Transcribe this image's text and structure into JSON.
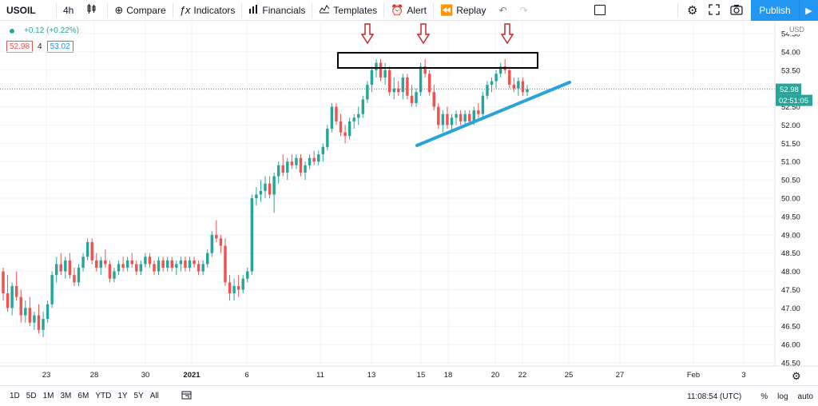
{
  "toolbar": {
    "symbol": "USOIL",
    "interval": "4h",
    "compare": "Compare",
    "indicators": "Indicators",
    "financials": "Financials",
    "templates": "Templates",
    "alert": "Alert",
    "replay": "Replay",
    "publish": "Publish"
  },
  "legend": {
    "change": "+0.12 (+0.22%)",
    "bid": "52.98",
    "spread": "4",
    "ask": "53.02"
  },
  "price_axis": {
    "currency": "USD",
    "current_price": "52.98",
    "countdown": "02:51:05"
  },
  "bottom_bar": {
    "ranges": [
      "1D",
      "5D",
      "1M",
      "3M",
      "6M",
      "YTD",
      "1Y",
      "5Y",
      "All"
    ],
    "time": "11:08:54 (UTC)",
    "percent": "%",
    "log": "log",
    "auto": "auto"
  },
  "colors": {
    "up": "#26a69a",
    "down": "#ef5350",
    "trendline": "#2aa3d9",
    "arrow": "#c62828",
    "accent": "#2196f3"
  },
  "chart_data": {
    "type": "candlestick",
    "ylim": [
      45.5,
      54.5
    ],
    "y_ticks": [
      "54.50",
      "54.00",
      "53.50",
      "53.00",
      "52.50",
      "52.00",
      "51.50",
      "51.00",
      "50.50",
      "50.00",
      "49.50",
      "49.00",
      "48.50",
      "48.00",
      "47.50",
      "47.00",
      "46.50",
      "46.00",
      "45.50"
    ],
    "x_ticks": [
      "23",
      "28",
      "30",
      "2021",
      "6",
      "11",
      "13",
      "15",
      "18",
      "20",
      "22",
      "25",
      "27",
      "Feb",
      "3"
    ],
    "last_price": 52.98,
    "candles": [
      [
        48.0,
        48.1,
        47.2,
        47.4
      ],
      [
        47.4,
        47.9,
        46.9,
        47.0
      ],
      [
        47.0,
        47.7,
        46.8,
        47.6
      ],
      [
        47.6,
        48.0,
        47.2,
        47.3
      ],
      [
        47.3,
        47.5,
        46.6,
        46.8
      ],
      [
        46.8,
        47.2,
        46.6,
        47.0
      ],
      [
        47.0,
        47.3,
        46.5,
        46.6
      ],
      [
        46.6,
        46.9,
        46.4,
        46.8
      ],
      [
        46.8,
        47.1,
        46.3,
        46.4
      ],
      [
        46.4,
        46.9,
        46.2,
        46.7
      ],
      [
        46.7,
        47.2,
        46.6,
        47.1
      ],
      [
        47.1,
        48.0,
        47.0,
        47.9
      ],
      [
        47.9,
        48.4,
        47.7,
        48.2
      ],
      [
        48.2,
        48.5,
        47.9,
        48.0
      ],
      [
        48.0,
        48.4,
        47.8,
        48.3
      ],
      [
        48.3,
        48.5,
        47.8,
        47.9
      ],
      [
        47.9,
        48.1,
        47.6,
        47.7
      ],
      [
        47.7,
        48.2,
        47.6,
        48.1
      ],
      [
        48.1,
        48.5,
        48.0,
        48.4
      ],
      [
        48.4,
        48.9,
        48.3,
        48.8
      ],
      [
        48.8,
        48.9,
        48.2,
        48.3
      ],
      [
        48.3,
        48.5,
        48.0,
        48.1
      ],
      [
        48.1,
        48.4,
        47.9,
        48.3
      ],
      [
        48.3,
        48.6,
        48.1,
        48.2
      ],
      [
        48.2,
        48.3,
        47.7,
        47.8
      ],
      [
        47.8,
        48.1,
        47.7,
        48.0
      ],
      [
        48.0,
        48.3,
        47.9,
        48.2
      ],
      [
        48.2,
        48.4,
        48.0,
        48.1
      ],
      [
        48.1,
        48.4,
        48.0,
        48.3
      ],
      [
        48.3,
        48.5,
        48.1,
        48.2
      ],
      [
        48.2,
        48.3,
        47.9,
        48.0
      ],
      [
        48.0,
        48.3,
        47.9,
        48.2
      ],
      [
        48.2,
        48.5,
        48.1,
        48.4
      ],
      [
        48.4,
        48.5,
        48.1,
        48.2
      ],
      [
        48.2,
        48.3,
        47.9,
        48.0
      ],
      [
        48.0,
        48.4,
        47.9,
        48.3
      ],
      [
        48.3,
        48.4,
        48.0,
        48.1
      ],
      [
        48.1,
        48.4,
        48.0,
        48.3
      ],
      [
        48.3,
        48.4,
        48.0,
        48.1
      ],
      [
        48.1,
        48.3,
        47.9,
        48.2
      ],
      [
        48.2,
        48.4,
        48.0,
        48.3
      ],
      [
        48.3,
        48.4,
        48.0,
        48.1
      ],
      [
        48.1,
        48.4,
        48.0,
        48.3
      ],
      [
        48.3,
        48.4,
        48.1,
        48.2
      ],
      [
        48.2,
        48.3,
        47.9,
        48.0
      ],
      [
        48.0,
        48.3,
        47.9,
        48.2
      ],
      [
        48.2,
        48.6,
        48.1,
        48.5
      ],
      [
        48.5,
        49.1,
        48.4,
        49.0
      ],
      [
        49.0,
        49.4,
        48.8,
        48.9
      ],
      [
        48.9,
        49.0,
        48.5,
        48.7
      ],
      [
        48.7,
        48.9,
        47.6,
        47.7
      ],
      [
        47.7,
        47.9,
        47.2,
        47.4
      ],
      [
        47.4,
        47.8,
        47.2,
        47.6
      ],
      [
        47.6,
        47.9,
        47.3,
        47.5
      ],
      [
        47.5,
        47.9,
        47.4,
        47.8
      ],
      [
        47.8,
        48.1,
        47.7,
        48.0
      ],
      [
        48.0,
        50.1,
        47.9,
        50.0
      ],
      [
        50.0,
        50.3,
        49.8,
        50.1
      ],
      [
        50.1,
        50.5,
        49.9,
        50.2
      ],
      [
        50.2,
        50.6,
        50.0,
        50.4
      ],
      [
        50.4,
        50.6,
        50.0,
        50.1
      ],
      [
        50.1,
        50.7,
        49.6,
        50.6
      ],
      [
        50.6,
        51.0,
        50.4,
        50.9
      ],
      [
        50.9,
        51.2,
        50.6,
        50.7
      ],
      [
        50.7,
        51.1,
        50.5,
        51.0
      ],
      [
        51.0,
        51.2,
        50.8,
        50.9
      ],
      [
        50.9,
        51.2,
        50.8,
        51.1
      ],
      [
        51.1,
        51.2,
        50.6,
        50.7
      ],
      [
        50.7,
        51.0,
        50.5,
        50.9
      ],
      [
        50.9,
        51.2,
        50.8,
        51.1
      ],
      [
        51.1,
        51.3,
        50.9,
        51.0
      ],
      [
        51.0,
        51.3,
        50.9,
        51.2
      ],
      [
        51.2,
        51.5,
        51.0,
        51.4
      ],
      [
        51.4,
        52.0,
        51.3,
        51.9
      ],
      [
        51.9,
        52.6,
        51.8,
        52.5
      ],
      [
        52.5,
        52.6,
        52.0,
        52.1
      ],
      [
        52.1,
        52.3,
        51.7,
        51.8
      ],
      [
        51.8,
        52.0,
        51.5,
        51.7
      ],
      [
        51.7,
        52.2,
        51.6,
        52.1
      ],
      [
        52.1,
        52.3,
        51.9,
        52.2
      ],
      [
        52.2,
        52.5,
        52.0,
        52.3
      ],
      [
        52.3,
        52.8,
        52.2,
        52.7
      ],
      [
        52.7,
        53.2,
        52.6,
        53.1
      ],
      [
        53.1,
        53.6,
        52.9,
        53.5
      ],
      [
        53.5,
        53.8,
        53.3,
        53.7
      ],
      [
        53.7,
        53.8,
        53.2,
        53.3
      ],
      [
        53.3,
        53.7,
        53.1,
        53.5
      ],
      [
        53.5,
        53.6,
        52.8,
        52.9
      ],
      [
        52.9,
        53.3,
        52.7,
        53.0
      ],
      [
        53.0,
        53.2,
        52.8,
        52.9
      ],
      [
        52.9,
        53.4,
        52.7,
        53.3
      ],
      [
        53.3,
        53.4,
        52.7,
        52.8
      ],
      [
        52.8,
        53.1,
        52.5,
        52.6
      ],
      [
        52.6,
        53.0,
        52.5,
        52.9
      ],
      [
        52.9,
        53.7,
        52.8,
        53.6
      ],
      [
        53.6,
        53.8,
        53.3,
        53.4
      ],
      [
        53.4,
        53.5,
        52.8,
        52.9
      ],
      [
        52.9,
        53.1,
        52.4,
        52.5
      ],
      [
        52.5,
        52.6,
        51.9,
        52.0
      ],
      [
        52.0,
        52.4,
        51.8,
        52.3
      ],
      [
        52.3,
        52.5,
        51.9,
        52.0
      ],
      [
        52.0,
        52.3,
        51.8,
        52.2
      ],
      [
        52.2,
        52.4,
        52.0,
        52.3
      ],
      [
        52.3,
        52.4,
        52.0,
        52.1
      ],
      [
        52.1,
        52.4,
        52.0,
        52.3
      ],
      [
        52.3,
        52.4,
        52.0,
        52.1
      ],
      [
        52.1,
        52.5,
        52.0,
        52.4
      ],
      [
        52.4,
        52.6,
        52.2,
        52.3
      ],
      [
        52.3,
        52.9,
        52.2,
        52.8
      ],
      [
        52.8,
        53.2,
        52.7,
        53.1
      ],
      [
        53.1,
        53.3,
        52.9,
        53.2
      ],
      [
        53.2,
        53.5,
        53.0,
        53.4
      ],
      [
        53.4,
        53.7,
        53.3,
        53.6
      ],
      [
        53.6,
        53.8,
        53.4,
        53.5
      ],
      [
        53.5,
        53.6,
        53.0,
        53.1
      ],
      [
        53.1,
        53.3,
        52.9,
        53.0
      ],
      [
        53.0,
        53.3,
        52.8,
        53.2
      ],
      [
        53.2,
        53.3,
        52.8,
        52.9
      ],
      [
        52.9,
        53.1,
        52.8,
        52.98
      ]
    ]
  }
}
